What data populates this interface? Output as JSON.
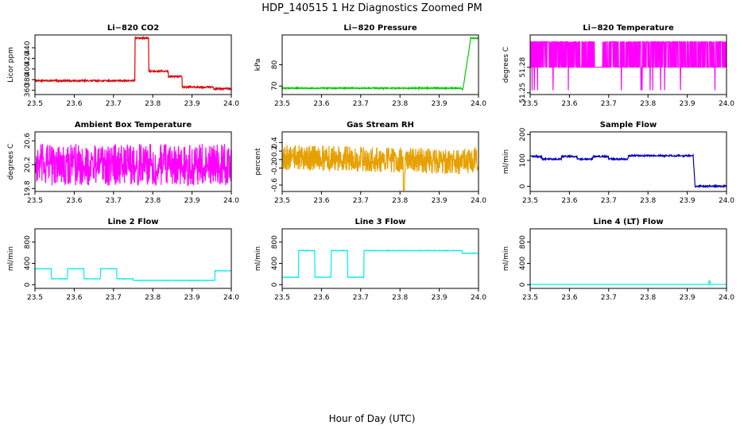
{
  "figure": {
    "title": "HDP_140515  1 Hz Diagnostics Zoomed PM",
    "xlabel": "Hour of Day (UTC)"
  },
  "chart_data": [
    {
      "type": "line",
      "title": "Li−820 CO2",
      "ylabel": "Licor ppm",
      "color": "#dd0000",
      "xlim": [
        23.5,
        24.0
      ],
      "ylim": [
        352,
        464
      ],
      "xticks": [
        "23.5",
        "23.6",
        "23.7",
        "23.8",
        "23.9",
        "24.0"
      ],
      "yticks": [
        360,
        380,
        400,
        420,
        440
      ],
      "noise": 1.5,
      "series": [
        {
          "x": [
            23.5,
            23.755,
            23.755,
            23.79,
            23.79,
            23.84,
            23.84,
            23.875,
            23.875,
            23.955,
            23.955,
            24.0
          ],
          "y": [
            378,
            378,
            458,
            458,
            396,
            396,
            386,
            386,
            366,
            366,
            363,
            363
          ]
        }
      ]
    },
    {
      "type": "line",
      "title": "Li−820 Pressure",
      "ylabel": "kPa",
      "color": "#00cc00",
      "xlim": [
        23.5,
        24.0
      ],
      "ylim": [
        66,
        94
      ],
      "xticks": [
        "23.5",
        "23.6",
        "23.7",
        "23.8",
        "23.9",
        "24.0"
      ],
      "yticks": [
        70,
        80
      ],
      "noise": 0.3,
      "series": [
        {
          "x": [
            23.5,
            23.955,
            23.96,
            23.975,
            23.98,
            24.0
          ],
          "y": [
            69,
            69,
            68.3,
            86,
            92.5,
            92.5
          ]
        }
      ]
    },
    {
      "type": "line",
      "title": "Li−820 Temperature",
      "ylabel": "degrees C",
      "color": "#ff00ff",
      "xlim": [
        23.5,
        24.0
      ],
      "ylim": [
        51.248,
        51.318
      ],
      "xticks": [
        "23.5",
        "23.6",
        "23.7",
        "23.8",
        "23.9",
        "24.0"
      ],
      "yticks": [
        51.25,
        51.28
      ],
      "series": [
        {
          "x": [
            23.5,
            23.52,
            23.54,
            23.56,
            23.58,
            23.6,
            23.62,
            23.64,
            23.66,
            23.68,
            23.7,
            23.72,
            23.74,
            23.76,
            23.78,
            23.8,
            23.82,
            23.84,
            23.86,
            23.88,
            23.9,
            23.92,
            23.94,
            23.96,
            23.98,
            24.0
          ],
          "y": [
            51.28,
            51.31,
            51.28,
            51.31,
            51.28,
            51.31,
            51.28,
            51.31,
            51.28,
            51.31,
            51.28,
            51.31,
            51.28,
            51.31,
            51.28,
            51.31,
            51.28,
            51.31,
            51.28,
            51.31,
            51.28,
            51.31,
            51.28,
            51.31,
            51.28,
            51.31
          ]
        }
      ]
    },
    {
      "type": "line",
      "title": "Ambient Box Temperature",
      "ylabel": "degrees C",
      "color": "#ff00ff",
      "xlim": [
        23.5,
        24.0
      ],
      "ylim": [
        19.75,
        20.75
      ],
      "xticks": [
        "23.5",
        "23.6",
        "23.7",
        "23.8",
        "23.9",
        "24.0"
      ],
      "yticks": [
        19.8,
        20.2,
        20.6
      ],
      "noise": 0.35,
      "series": [
        {
          "x": [
            23.5,
            24.0
          ],
          "y": [
            20.2,
            20.2
          ]
        }
      ]
    },
    {
      "type": "line",
      "title": "Gas Stream RH",
      "ylabel": "percent",
      "color": "#e6a000",
      "xlim": [
        23.5,
        24.0
      ],
      "ylim": [
        -0.75,
        0.65
      ],
      "xticks": [
        "23.5",
        "23.6",
        "23.7",
        "23.8",
        "23.9",
        "24.0"
      ],
      "yticks": [
        -0.6,
        -0.2,
        0.0,
        0.2,
        0.4
      ],
      "noise": 0.3,
      "series": [
        {
          "x": [
            23.5,
            23.95,
            24.0
          ],
          "y": [
            0.05,
            -0.05,
            0.0
          ]
        }
      ]
    },
    {
      "type": "line",
      "title": "Sample Flow",
      "ylabel": "ml/min",
      "color": "#0000bb",
      "xlim": [
        23.5,
        24.0
      ],
      "ylim": [
        -20,
        210
      ],
      "xticks": [
        "23.5",
        "23.6",
        "23.7",
        "23.8",
        "23.9",
        "24.0"
      ],
      "yticks": [
        0,
        100,
        200
      ],
      "noise": 3,
      "series": [
        {
          "x": [
            23.5,
            23.53,
            23.53,
            23.58,
            23.58,
            23.62,
            23.62,
            23.66,
            23.66,
            23.7,
            23.7,
            23.75,
            23.75,
            23.915,
            23.92,
            24.0
          ],
          "y": [
            115,
            115,
            105,
            105,
            115,
            115,
            105,
            105,
            115,
            115,
            105,
            105,
            118,
            118,
            0,
            0
          ]
        }
      ]
    },
    {
      "type": "line",
      "title": "Line 2 Flow",
      "ylabel": "ml/min",
      "color": "#00eeee",
      "xlim": [
        23.5,
        24.0
      ],
      "ylim": [
        -70,
        1050
      ],
      "xticks": [
        "23.5",
        "23.6",
        "23.7",
        "23.8",
        "23.9",
        "24.0"
      ],
      "yticks": [
        0,
        400,
        800
      ],
      "noise": 4,
      "series": [
        {
          "x": [
            23.5,
            23.5,
            23.542,
            23.542,
            23.583,
            23.583,
            23.625,
            23.625,
            23.667,
            23.667,
            23.708,
            23.708,
            23.75,
            23.75,
            23.958,
            23.958,
            24.0
          ],
          "y": [
            140,
            300,
            300,
            110,
            110,
            300,
            300,
            110,
            110,
            300,
            300,
            110,
            110,
            80,
            80,
            260,
            260
          ]
        }
      ]
    },
    {
      "type": "line",
      "title": "Line 3 Flow",
      "ylabel": "ml/min",
      "color": "#00eeee",
      "xlim": [
        23.5,
        24.0
      ],
      "ylim": [
        -70,
        1050
      ],
      "xticks": [
        "23.5",
        "23.6",
        "23.7",
        "23.8",
        "23.9",
        "24.0"
      ],
      "yticks": [
        0,
        400,
        800
      ],
      "noise": 5,
      "series": [
        {
          "x": [
            23.5,
            23.5,
            23.5,
            23.542,
            23.542,
            23.583,
            23.583,
            23.625,
            23.625,
            23.667,
            23.667,
            23.708,
            23.708,
            23.958,
            23.958,
            24.0
          ],
          "y": [
            600,
            600,
            140,
            140,
            640,
            640,
            140,
            140,
            640,
            640,
            140,
            140,
            640,
            640,
            590,
            590
          ]
        }
      ]
    },
    {
      "type": "line",
      "title": "Line 4 (LT) Flow",
      "ylabel": "ml/min",
      "color": "#00eeee",
      "xlim": [
        23.5,
        24.0
      ],
      "ylim": [
        -70,
        1050
      ],
      "xticks": [
        "23.5",
        "23.6",
        "23.7",
        "23.8",
        "23.9",
        "24.0"
      ],
      "yticks": [
        0,
        400,
        800
      ],
      "noise": 0,
      "series": [
        {
          "x": [
            23.5,
            23.955,
            23.955,
            23.958,
            23.958,
            23.96,
            23.96,
            24.0
          ],
          "y": [
            5,
            5,
            70,
            70,
            10,
            10,
            5,
            5
          ]
        }
      ]
    }
  ]
}
